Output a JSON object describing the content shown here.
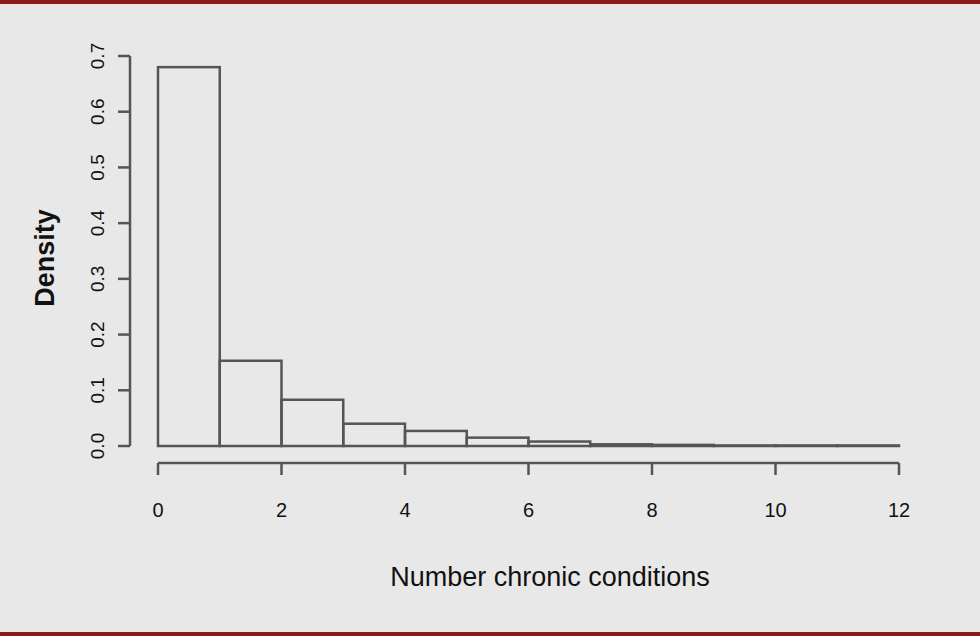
{
  "chart_data": {
    "type": "histogram",
    "x_label": "Number chronic conditions",
    "y_label": "Density",
    "bins": [
      0,
      1,
      2,
      3,
      4,
      5,
      6,
      7,
      8,
      9,
      10,
      11,
      12
    ],
    "values": [
      0.68,
      0.153,
      0.083,
      0.04,
      0.027,
      0.015,
      0.008,
      0.003,
      0.002,
      0.001,
      0.001,
      0.001
    ],
    "color": "#555555",
    "xlim": [
      0,
      12
    ],
    "ylim": [
      0,
      0.7
    ],
    "xticks": [
      0,
      2,
      4,
      6,
      8,
      10,
      12
    ],
    "yticks": [
      {
        "value": 0,
        "label": "0.0"
      },
      0.1,
      0.2,
      0.3,
      0.4,
      0.5,
      0.6,
      0.7
    ]
  }
}
